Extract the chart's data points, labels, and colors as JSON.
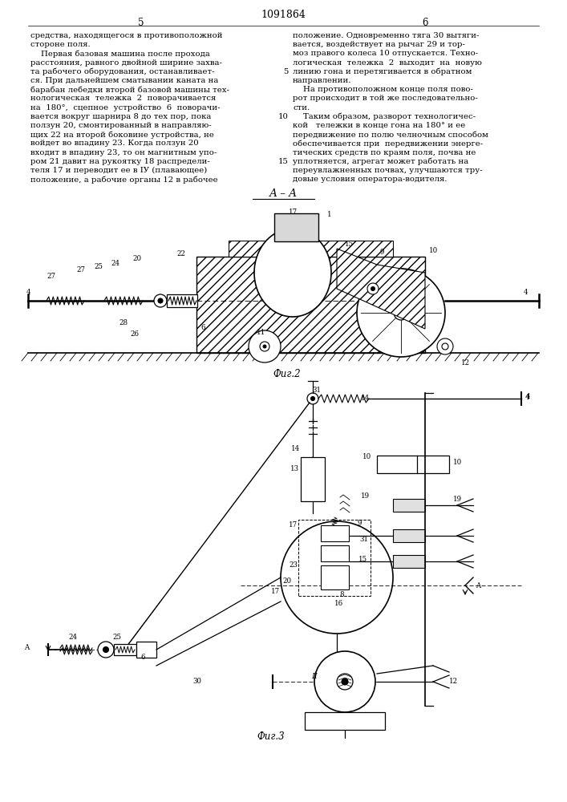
{
  "patent_number": "1091864",
  "page_left": "5",
  "page_right": "6",
  "text_left": [
    "средства, находящегося в противоположной",
    "стороне поля.",
    "    Первая базовая машина после прохода",
    "расстояния, равного двойной ширине захва-",
    "та рабочего оборудования, останавливает-",
    "ся. При дальнейшем сматывании каната на",
    "барабан лебедки второй базовой машины тех-",
    "нологическая  тележка  2  поворачивается",
    "на  180°,  сцепное  устройство  6  поворачи-",
    "вается вокруг шарнира 8 до тех пор, пока",
    "ползун 20, смонтированный в направляю-",
    "щих 22 на второй боковине устройства, не",
    "войдет во впадину 23. Когда ползун 20",
    "входит в впадину 23, то он магнитным упо-",
    "ром 21 давит на рукоятку 18 распредели-",
    "теля 17 и переводит ее в IУ (плавающее)",
    "положение, а рабочие органы 12 в рабочее"
  ],
  "text_right": [
    "положение. Одновременно тяга 30 вытяги-",
    "вается, воздействует на рычаг 29 и тор-",
    "моз правого колеса 10 отпускается. Техно-",
    "логическая  тележка  2  выходит  на  новую",
    "линию гона и перетягивается в обратном",
    "направлении.",
    "    На противоположном конце поля пово-",
    "рот происходит в той же последовательно-",
    "сти.",
    "    Таким образом, разворот технологичес-",
    "кой   тележки в конце гона на 180° и ее",
    "передвижение по полю челночным способом",
    "обеспечивается при  передвижении энерге-",
    "тических средств по краям поля, почва не",
    "уплотняется, агрегат может работать на",
    "переувлажненных почвах, улучшаются тру-",
    "довые условия оператора-водителя."
  ],
  "fig2_label": "Фиг.2",
  "fig3_label": "Фиг.3",
  "aa_label": "А – А",
  "bg_color": "#ffffff",
  "text_color": "#000000",
  "font_size_body": 7.3,
  "font_size_small": 6.2,
  "font_size_patent": 9,
  "font_size_page": 8.5
}
